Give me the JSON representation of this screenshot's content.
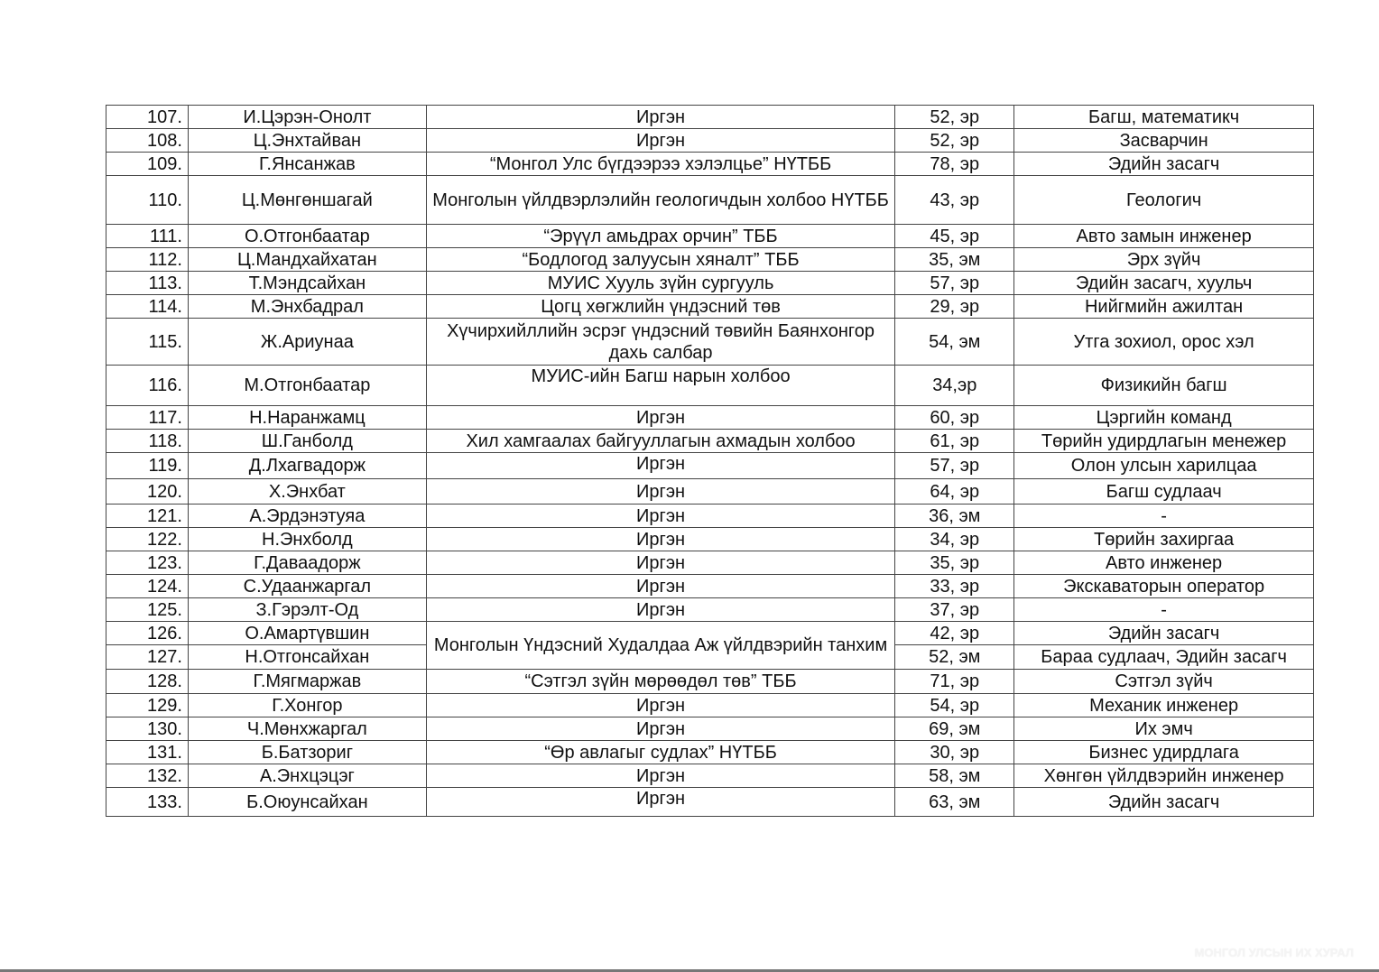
{
  "rows": [
    {
      "no": "107.",
      "name": "И.Цэрэн-Онолт",
      "org": "Иргэн",
      "age": "52, эр",
      "profession": "Багш, математикч"
    },
    {
      "no": "108.",
      "name": "Ц.Энхтайван",
      "org": "Иргэн",
      "age": "52, эр",
      "profession": "Засварчин"
    },
    {
      "no": "109.",
      "name": "Г.Янсанжав",
      "org": "“Монгол Улс бүгдээрээ хэлэлцье” НҮТББ",
      "age": "78, эр",
      "profession": "Эдийн засагч"
    },
    {
      "no": "110.",
      "name": "Ц.Мөнгөншагай",
      "org": "Монголын үйлдвэрлэлийн геологичдын холбоо НҮТББ",
      "age": "43, эр",
      "profession": "Геологич"
    },
    {
      "no": "111.",
      "name": "О.Отгонбаатар",
      "org": "“Эрүүл амьдрах орчин” ТББ",
      "age": "45, эр",
      "profession": "Авто замын инженер"
    },
    {
      "no": "112.",
      "name": "Ц.Мандхайхатан",
      "org": "“Бодлогод залуусын хяналт” ТББ",
      "age": "35, эм",
      "profession": "Эрх зүйч"
    },
    {
      "no": "113.",
      "name": "Т.Мэндсайхан",
      "org": "МУИС Хууль зүйн сургууль",
      "age": "57, эр",
      "profession": "Эдийн засагч, хуульч"
    },
    {
      "no": "114.",
      "name": "М.Энхбадрал",
      "org": "Цогц хөгжлийн үндэсний төв",
      "age": "29, эр",
      "profession": "Нийгмийн ажилтан"
    },
    {
      "no": "115.",
      "name": "Ж.Ариунаа",
      "org": "Хүчирхийллийн эсрэг үндэсний төвийн Баянхонгор дахь салбар",
      "age": "54, эм",
      "profession": "Утга зохиол, орос хэл"
    },
    {
      "no": "116.",
      "name": "М.Отгонбаатар",
      "org": "МУИС-ийн Багш нарын холбоо",
      "age": "34,эр",
      "profession": "Физикийн багш"
    },
    {
      "no": "117.",
      "name": "Н.Наранжамц",
      "org": "Иргэн",
      "age": "60, эр",
      "profession": "Цэргийн команд"
    },
    {
      "no": "118.",
      "name": "Ш.Ганболд",
      "org": "Хил хамгаалах байгууллагын ахмадын холбоо",
      "age": "61, эр",
      "profession": "Төрийн удирдлагын менежер"
    },
    {
      "no": "119.",
      "name": "Д.Лхагвадорж",
      "org": "Иргэн",
      "age": "57, эр",
      "profession": "Олон улсын харилцаа"
    },
    {
      "no": "120.",
      "name": "Х.Энхбат",
      "org": "Иргэн",
      "age": "64, эр",
      "profession": "Багш судлаач"
    },
    {
      "no": "121.",
      "name": "А.Эрдэнэтуяа",
      "org": "Иргэн",
      "age": "36, эм",
      "profession": "-"
    },
    {
      "no": "122.",
      "name": "Н.Энхболд",
      "org": "Иргэн",
      "age": "34, эр",
      "profession": "Төрийн захиргаа"
    },
    {
      "no": "123.",
      "name": "Г.Даваадорж",
      "org": "Иргэн",
      "age": "35, эр",
      "profession": "Авто инженер"
    },
    {
      "no": "124.",
      "name": "С.Удаанжаргал",
      "org": "Иргэн",
      "age": "33, эр",
      "profession": "Экскаваторын оператор"
    },
    {
      "no": "125.",
      "name": "З.Гэрэлт-Од",
      "org": "Иргэн",
      "age": "37, эр",
      "profession": "-"
    },
    {
      "no": "126.",
      "name": "О.Амартүвшин",
      "org": "Монголын Үндэсний Худалдаа Аж үйлдвэрийн танхим",
      "age": "42, эр",
      "profession": "Эдийн засагч"
    },
    {
      "no": "127.",
      "name": "Н.Отгонсайхан",
      "org": "",
      "age": "52, эм",
      "profession": "Бараа судлаач, Эдийн засагч"
    },
    {
      "no": "128.",
      "name": "Г.Мягмаржав",
      "org": "“Сэтгэл зүйн мөрөөдөл төв” ТББ",
      "age": "71, эр",
      "profession": "Сэтгэл зүйч"
    },
    {
      "no": "129.",
      "name": "Г.Хонгор",
      "org": "Иргэн",
      "age": "54, эр",
      "profession": "Механик инженер"
    },
    {
      "no": "130.",
      "name": "Ч.Мөнхжаргал",
      "org": "Иргэн",
      "age": "69, эм",
      "profession": "Их эмч"
    },
    {
      "no": "131.",
      "name": "Б.Батзориг",
      "org": "“Өр авлагыг судлах” НҮТББ",
      "age": "30, эр",
      "profession": "Бизнес удирдлага"
    },
    {
      "no": "132.",
      "name": "А.Энхцэцэг",
      "org": "Иргэн",
      "age": "58, эм",
      "profession": "Хөнгөн үйлдвэрийн инженер"
    },
    {
      "no": "133.",
      "name": "Б.Оюунсайхан",
      "org": "Иргэн",
      "age": "63, эм",
      "profession": "Эдийн засагч"
    }
  ],
  "watermark": "МОНГОЛ УЛСЫН ИХ ХУРАЛ"
}
